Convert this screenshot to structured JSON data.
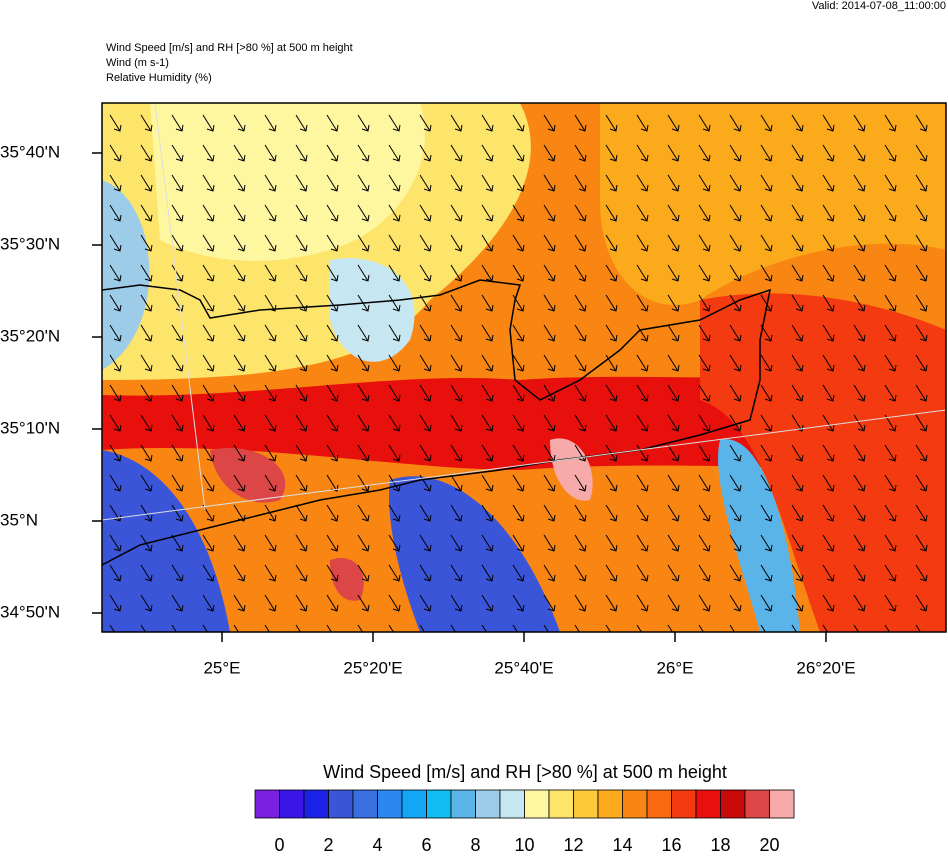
{
  "header": {
    "valid": "Valid: 2014-07-08_11:00:00",
    "title_lines": [
      "Wind Speed [m/s] and RH [>80 %] at 500 m height",
      "Wind   (m s-1)",
      "Relative Humidity   (%)"
    ]
  },
  "map": {
    "lat_ticks": [
      {
        "value": 35.6667,
        "label": "35°40'N"
      },
      {
        "value": 35.5,
        "label": "35°30'N"
      },
      {
        "value": 35.3333,
        "label": "35°20'N"
      },
      {
        "value": 35.1667,
        "label": "35°10'N"
      },
      {
        "value": 35,
        "label": "35°N"
      },
      {
        "value": 34.8333,
        "label": "34°50'N"
      }
    ],
    "lon_ticks": [
      {
        "value": 25,
        "label": "25°E"
      },
      {
        "value": 25.3333,
        "label": "25°20'E"
      },
      {
        "value": 25.6667,
        "label": "25°40'E"
      },
      {
        "value": 26,
        "label": "26°E"
      },
      {
        "value": 26.3333,
        "label": "26°20'E"
      }
    ]
  },
  "colorbar": {
    "title": "Wind Speed [m/s] and RH [>80 %] at 500 m height",
    "labels": [
      0,
      2,
      4,
      6,
      8,
      10,
      12,
      14,
      16,
      18,
      20
    ],
    "colors": [
      "#7b1fe0",
      "#3a16e8",
      "#1a22e8",
      "#3a55d8",
      "#3a6fe0",
      "#2a88f0",
      "#12a6f5",
      "#10bcf2",
      "#5ab4e8",
      "#9ccce8",
      "#c6e6f2",
      "#fff7a0",
      "#fde46a",
      "#fdc93a",
      "#fbaa1c",
      "#f98612",
      "#f96a10",
      "#f43a10",
      "#e8100c",
      "#c80a0a",
      "#dd4646",
      "#f6aaaa"
    ]
  }
}
